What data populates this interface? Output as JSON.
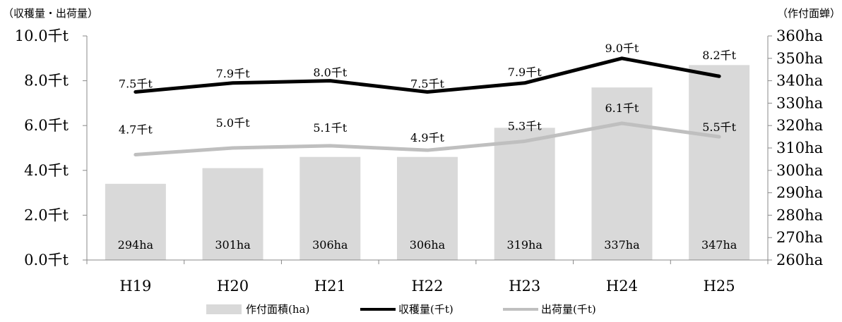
{
  "left_axis_title": "（収穫量・出荷量）",
  "right_axis_title": "（作付面蝉）",
  "chart_data": {
    "type": "bar+line",
    "categories": [
      "H19",
      "H20",
      "H21",
      "H22",
      "H23",
      "H24",
      "H25"
    ],
    "left_ticks": [
      "0.0千t",
      "2.0千t",
      "4.0千t",
      "6.0千t",
      "8.0千t",
      "10.0千t"
    ],
    "right_ticks": [
      "260ha",
      "270ha",
      "280ha",
      "290ha",
      "300ha",
      "310ha",
      "320ha",
      "330ha",
      "340ha",
      "350ha",
      "360ha"
    ],
    "ylim_left": [
      0,
      10
    ],
    "ylim_right": [
      260,
      360
    ],
    "bars": {
      "name": "作付面積(ha)",
      "axis": "right",
      "values": [
        294,
        301,
        306,
        306,
        319,
        337,
        347
      ],
      "labels": [
        "294ha",
        "301ha",
        "306ha",
        "306ha",
        "319ha",
        "337ha",
        "347ha"
      ],
      "color": "#d9d9d9"
    },
    "series": [
      {
        "name": "収穫量(千t)",
        "axis": "left",
        "values": [
          7.5,
          7.9,
          8.0,
          7.5,
          7.9,
          9.0,
          8.2
        ],
        "labels": [
          "7.5千t",
          "7.9千t",
          "8.0千t",
          "7.5千t",
          "7.9千t",
          "9.0千t",
          "8.2千t"
        ],
        "color": "#000000"
      },
      {
        "name": "出荷量(千t)",
        "axis": "left",
        "values": [
          4.7,
          5.0,
          5.1,
          4.9,
          5.3,
          6.1,
          5.5
        ],
        "labels": [
          "4.7千t",
          "5.0千t",
          "5.1千t",
          "4.9千t",
          "5.3千t",
          "6.1千t",
          "5.5千t"
        ],
        "color": "#bfbfbf"
      }
    ],
    "grid": false,
    "legend_position": "bottom"
  }
}
